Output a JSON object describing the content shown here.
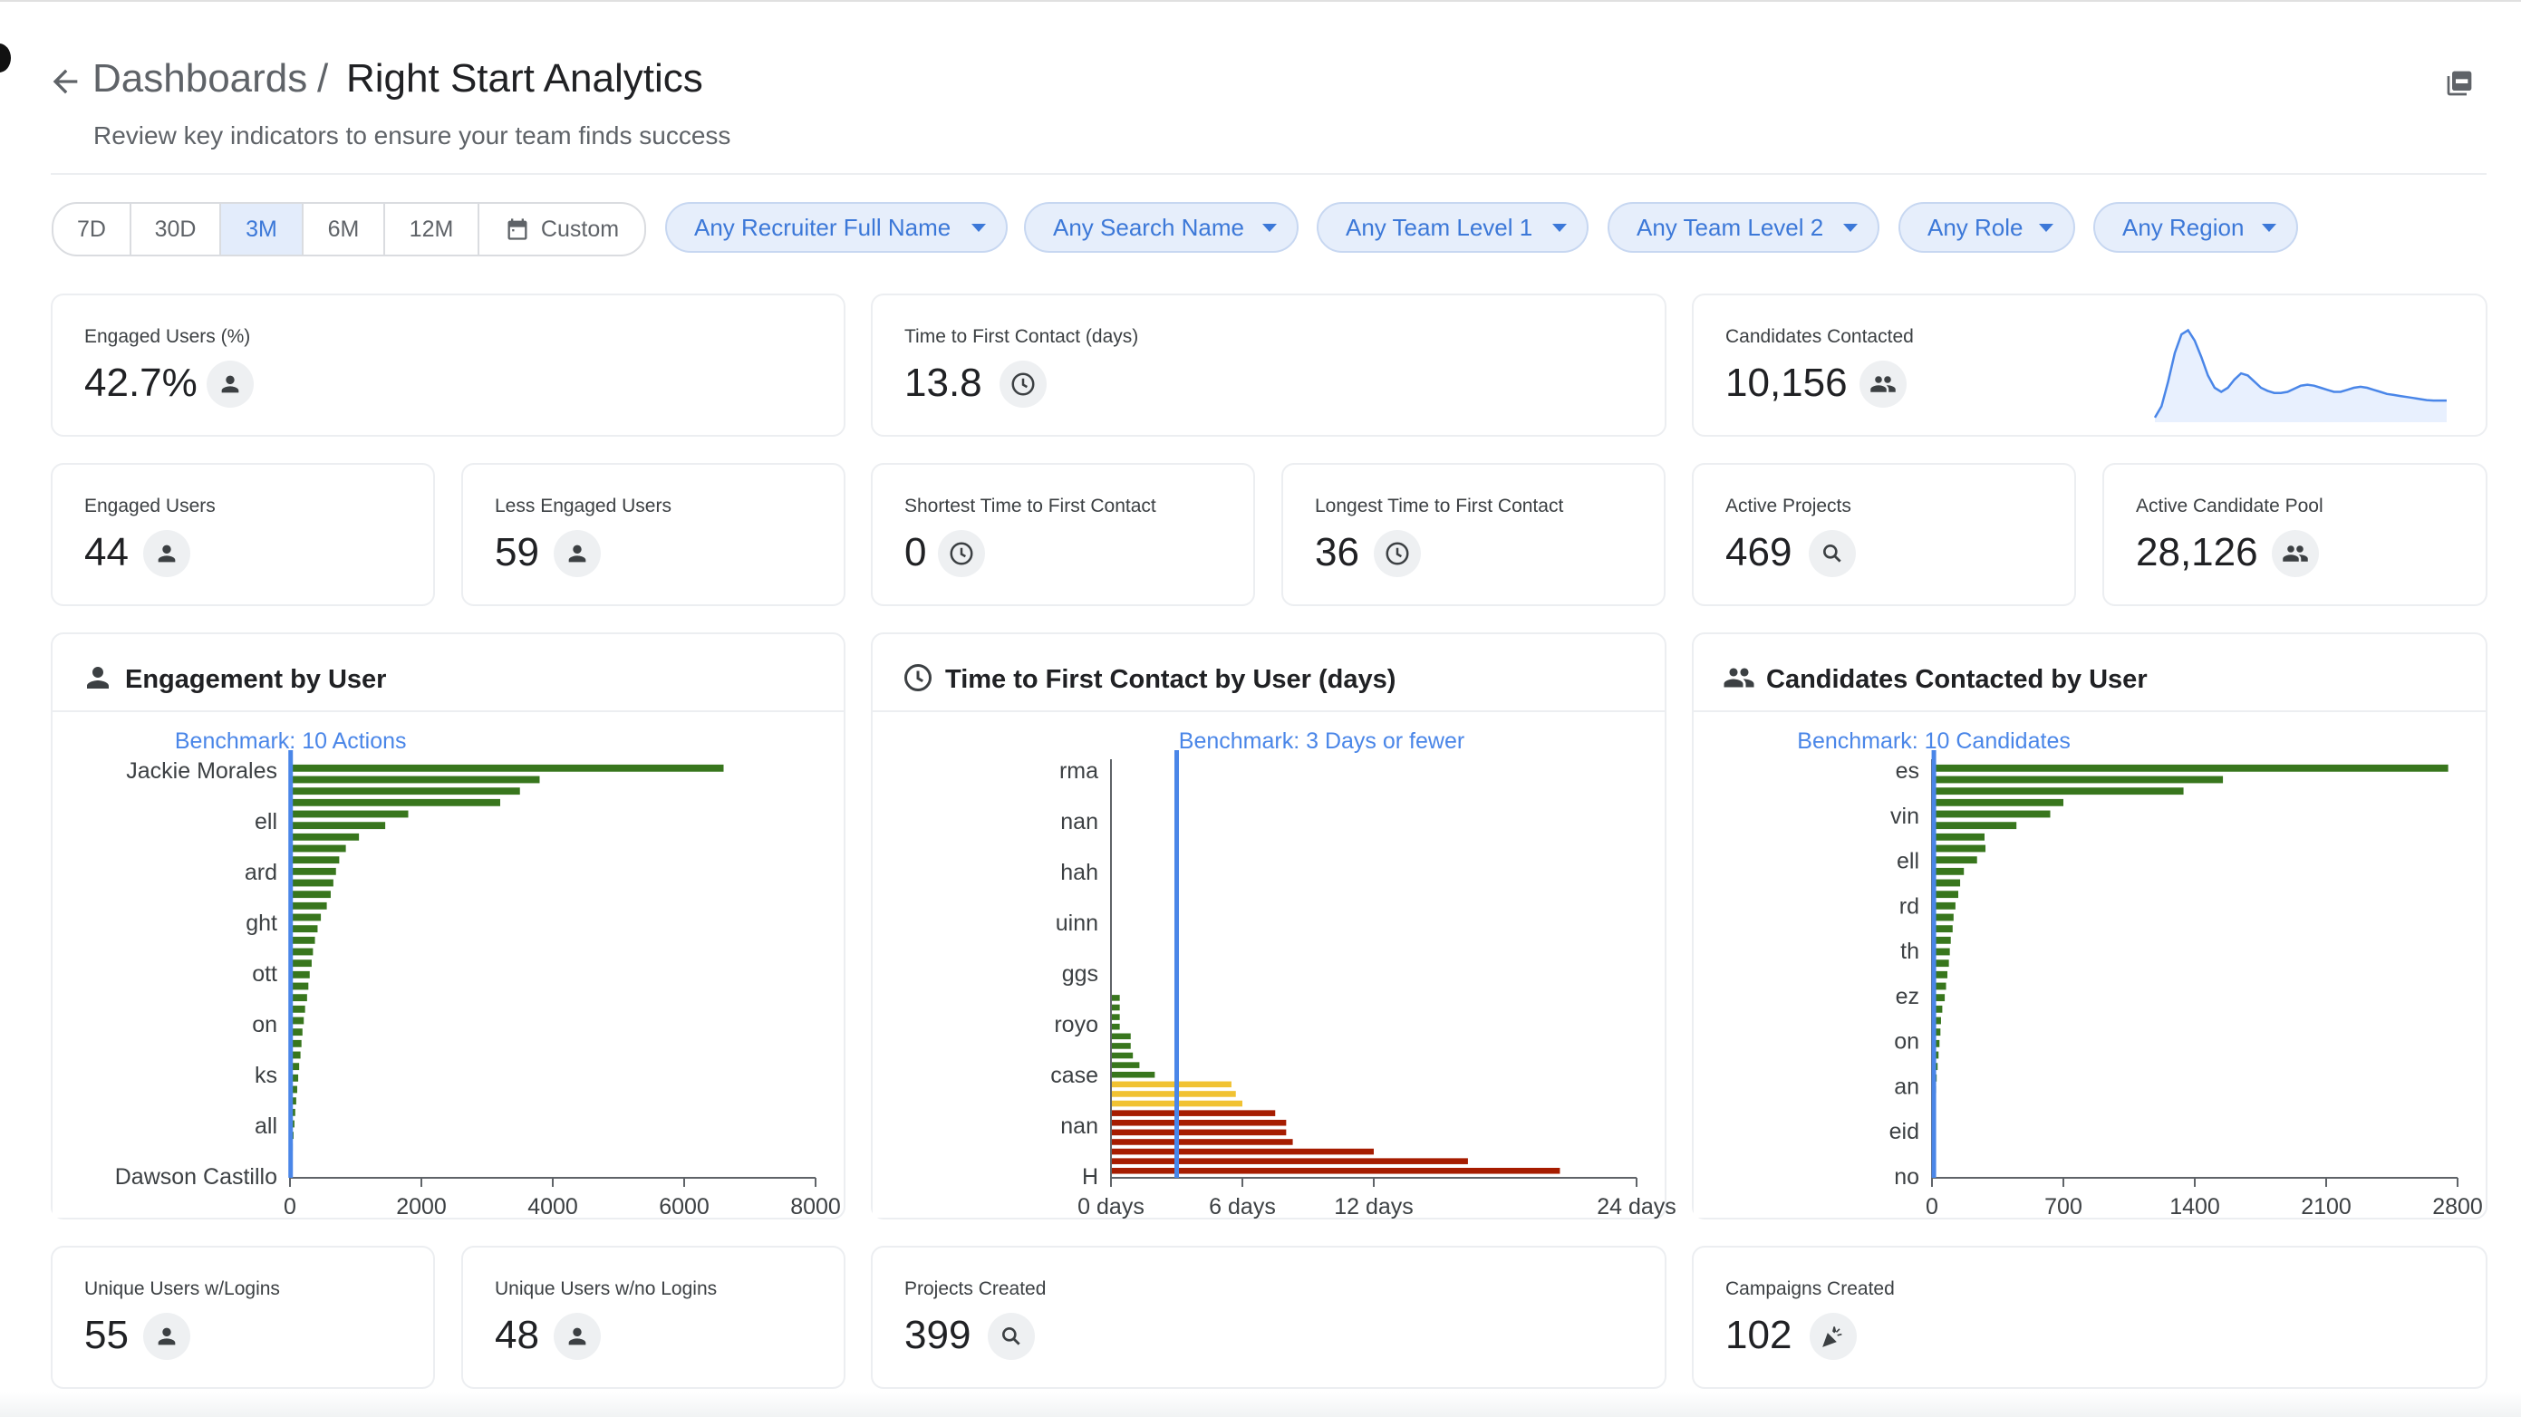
{
  "header": {
    "breadcrumb_parent": "Dashboards",
    "breadcrumb_separator": "/",
    "breadcrumb_current": "Right Start Analytics",
    "subtitle": "Review key indicators to ensure your team finds success"
  },
  "time_range": {
    "options": [
      "7D",
      "30D",
      "3M",
      "6M",
      "12M",
      "Custom"
    ],
    "selected": "3M"
  },
  "filters": [
    "Any Recruiter Full Name",
    "Any Search Name",
    "Any Team Level 1",
    "Any Team Level 2",
    "Any Role",
    "Any Region"
  ],
  "kpis": {
    "engaged_pct": {
      "label": "Engaged Users (%)",
      "value": "42.7%"
    },
    "time_first_contact": {
      "label": "Time to First Contact (days)",
      "value": "13.8"
    },
    "candidates_contacted": {
      "label": "Candidates Contacted",
      "value": "10,156"
    },
    "engaged_users": {
      "label": "Engaged Users",
      "value": "44"
    },
    "less_engaged": {
      "label": "Less Engaged Users",
      "value": "59"
    },
    "shortest_time": {
      "label": "Shortest Time to First Contact",
      "value": "0"
    },
    "longest_time": {
      "label": "Longest Time to First Contact",
      "value": "36"
    },
    "active_projects": {
      "label": "Active Projects",
      "value": "469"
    },
    "active_pool": {
      "label": "Active Candidate Pool",
      "value": "28,126"
    },
    "users_logins": {
      "label": "Unique Users w/Logins",
      "value": "55"
    },
    "users_no_logins": {
      "label": "Unique Users w/no Logins",
      "value": "48"
    },
    "projects_created": {
      "label": "Projects Created",
      "value": "399"
    },
    "campaigns_created": {
      "label": "Campaigns Created",
      "value": "102"
    }
  },
  "icons": {
    "person": "person-icon",
    "clock": "clock-icon",
    "people": "people-icon",
    "search": "search-icon",
    "campaign": "campaign-icon",
    "pdf": "pdf-icon",
    "back": "arrow-back-icon",
    "calendar": "calendar-icon"
  },
  "colors": {
    "accent": "#3c78d8",
    "benchmark": "#4a86e8",
    "green": "#38761d",
    "yellow": "#f1c232",
    "red": "#a61c00"
  },
  "chart_data": [
    {
      "type": "line",
      "x": [
        1,
        2,
        3,
        4,
        5,
        6,
        7,
        8,
        9,
        10,
        11,
        12,
        13,
        14,
        15,
        16,
        17,
        18,
        19,
        20,
        21,
        22,
        23,
        24,
        25,
        26,
        27,
        28,
        29,
        30,
        31,
        32,
        33,
        34,
        35,
        36,
        37,
        38,
        39,
        40,
        41,
        42,
        43,
        44,
        45
      ],
      "values": [
        5,
        60,
        180,
        320,
        410,
        430,
        380,
        300,
        210,
        150,
        130,
        150,
        190,
        220,
        210,
        180,
        150,
        135,
        125,
        125,
        130,
        145,
        160,
        165,
        160,
        150,
        140,
        130,
        130,
        140,
        150,
        155,
        150,
        140,
        130,
        120,
        115,
        110,
        105,
        100,
        95,
        90,
        88,
        88,
        88
      ],
      "ylim": [
        0,
        450
      ]
    },
    {
      "type": "bar",
      "title": "Engagement by User",
      "orientation": "horizontal",
      "benchmark_label": "Benchmark: 10 Actions",
      "benchmark_value": 10,
      "xlim": [
        0,
        8000
      ],
      "xticks": [
        "0",
        "2000",
        "4000",
        "6000",
        "8000"
      ],
      "tick_labels_visible": [
        "Jackie Morales",
        "ell",
        "ard",
        "ght",
        "ott",
        "on",
        "ks",
        "all",
        "Dawson Castillo"
      ],
      "values": [
        6600,
        3800,
        3500,
        3200,
        1800,
        1450,
        1050,
        850,
        750,
        700,
        660,
        620,
        560,
        470,
        420,
        380,
        350,
        330,
        300,
        280,
        260,
        230,
        210,
        190,
        175,
        160,
        140,
        125,
        110,
        95,
        80,
        68,
        55,
        42,
        32,
        22
      ]
    },
    {
      "type": "bar",
      "title": "Time to First Contact by User (days)",
      "orientation": "horizontal",
      "benchmark_label": "Benchmark: 3 Days or fewer",
      "benchmark_value": 3,
      "xlim": [
        0,
        24
      ],
      "xticks": [
        "0 days",
        "6 days",
        "12 days",
        "24 days"
      ],
      "tick_labels_visible": [
        "rma",
        "nan",
        "hah",
        "uinn",
        "ggs",
        "royo",
        "case",
        "nan",
        "H"
      ],
      "values": [
        0,
        0,
        0,
        0,
        0,
        0,
        0,
        0,
        0,
        0,
        0,
        0,
        0,
        0,
        0,
        0,
        0,
        0,
        0,
        0,
        0,
        0,
        0,
        0,
        0.4,
        0.4,
        0.4,
        0.4,
        0.9,
        0.9,
        1.0,
        1.3,
        2.0,
        5.5,
        5.7,
        6.0,
        7.5,
        8.0,
        8.0,
        8.3,
        12.0,
        16.3,
        20.5
      ],
      "colors": [
        "green",
        "green",
        "green",
        "green",
        "green",
        "green",
        "green",
        "green",
        "green",
        "green",
        "green",
        "green",
        "green",
        "green",
        "green",
        "green",
        "green",
        "green",
        "green",
        "green",
        "green",
        "green",
        "green",
        "green",
        "green",
        "green",
        "green",
        "green",
        "green",
        "green",
        "green",
        "green",
        "green",
        "yellow",
        "yellow",
        "yellow",
        "red",
        "red",
        "red",
        "red",
        "red",
        "red",
        "red"
      ]
    },
    {
      "type": "bar",
      "title": "Candidates Contacted by User",
      "orientation": "horizontal",
      "benchmark_label": "Benchmark: 10 Candidates",
      "benchmark_value": 10,
      "xlim": [
        0,
        2800
      ],
      "xticks": [
        "0",
        "700",
        "1400",
        "2100",
        "2800"
      ],
      "tick_labels_visible": [
        "es",
        "vin",
        "ell",
        "rd",
        "th",
        "ez",
        "on",
        "an",
        "eid",
        "no"
      ],
      "values": [
        2750,
        1550,
        1340,
        700,
        630,
        450,
        280,
        285,
        240,
        170,
        150,
        140,
        125,
        115,
        110,
        100,
        95,
        90,
        82,
        75,
        68,
        55,
        48,
        45,
        40,
        35,
        30,
        25,
        22,
        20,
        17,
        15,
        12,
        10,
        8,
        6
      ]
    }
  ]
}
